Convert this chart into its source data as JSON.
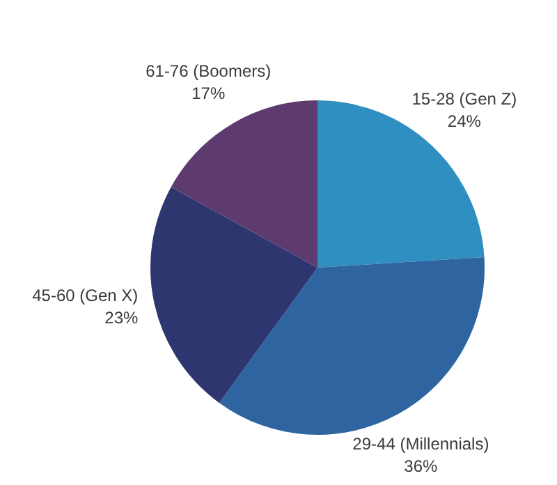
{
  "chart_data": {
    "type": "pie",
    "categories": [
      "15-28 (Gen Z)",
      "29-44 (Millennials)",
      "45-60 (Gen X)",
      "61-76 (Boomers)"
    ],
    "values": [
      24,
      36,
      23,
      17
    ],
    "colors": [
      "#2e8fc0",
      "#2e65a0",
      "#2e3670",
      "#5e3b6e"
    ],
    "value_labels": [
      "24%",
      "36%",
      "23%",
      "17%"
    ],
    "legend": false
  }
}
